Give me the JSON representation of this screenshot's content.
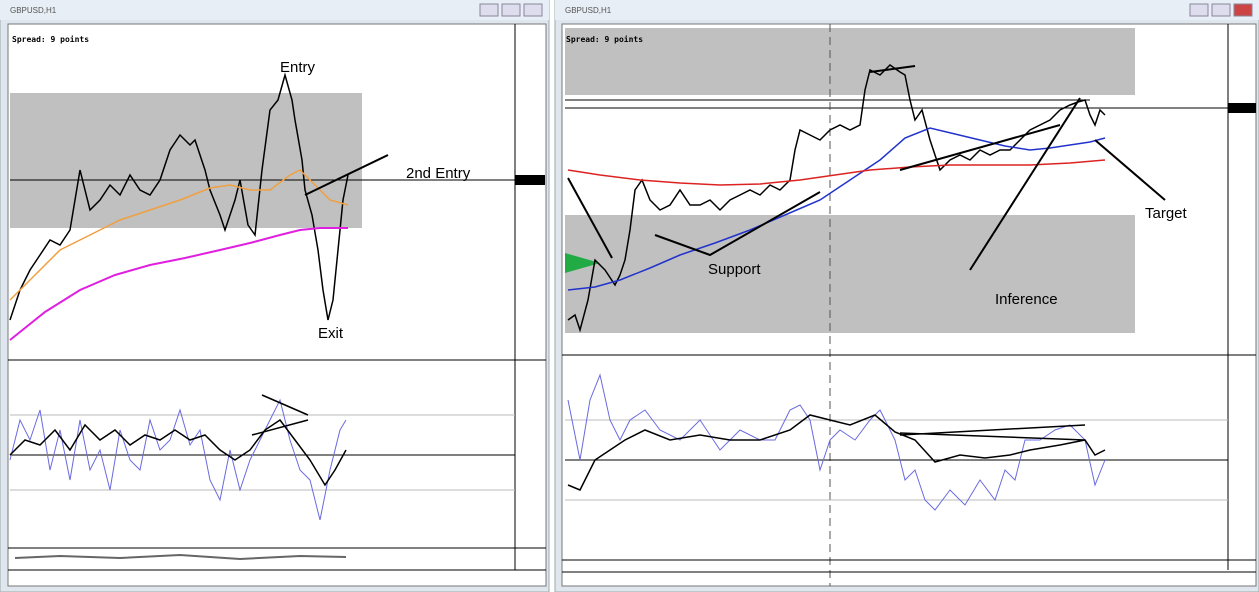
{
  "left_window": {
    "title": "GBPUSD,H1",
    "spread": "Spread: 9 points",
    "annotations": [
      "Entry",
      "2nd Entry",
      "Exit"
    ]
  },
  "right_window": {
    "title": "GBPUSD,H1",
    "spread": "Spread: 9 points",
    "annotations": [
      "Support",
      "Inference",
      "Target"
    ]
  }
}
